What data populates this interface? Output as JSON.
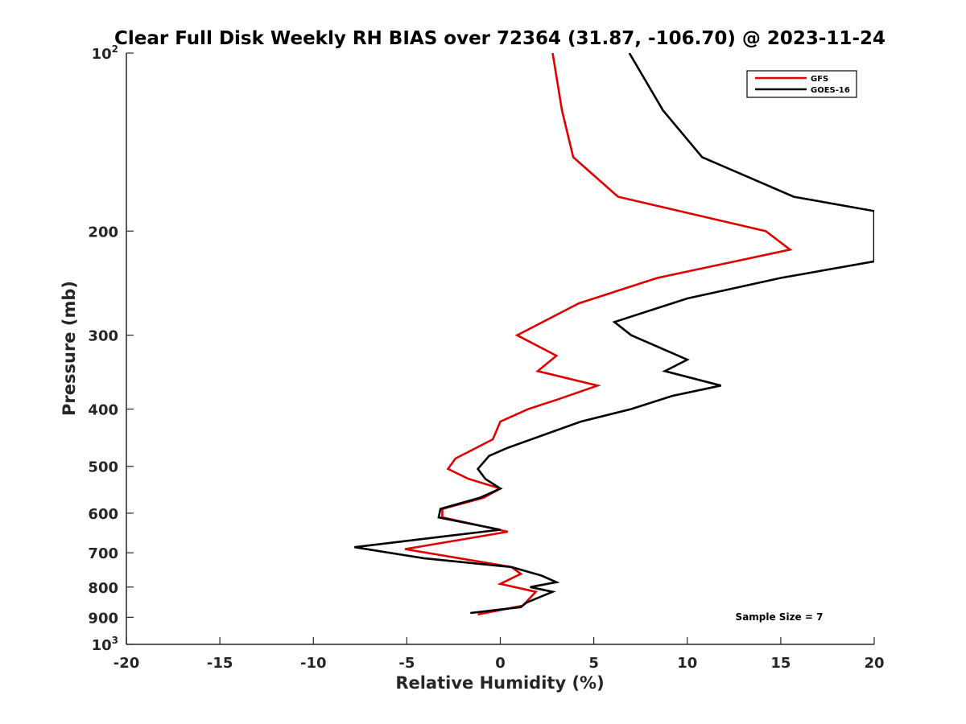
{
  "chart_data": {
    "type": "line",
    "title": "Clear Full Disk Weekly RH BIAS over 72364 (31.87, -106.70) @ 2023-11-24",
    "xlabel": "Relative Humidity (%)",
    "ylabel": "Pressure (mb)",
    "xlim": [
      -20,
      20
    ],
    "ylim": [
      100,
      1000
    ],
    "y_scale": "log",
    "y_reversed": true,
    "x_ticks": [
      "-20",
      "-15",
      "-10",
      "-5",
      "0",
      "5",
      "10",
      "15",
      "20"
    ],
    "y_ticks": [
      {
        "value": 100,
        "base": "10",
        "exp": "2"
      },
      {
        "value": 200,
        "base": "200",
        "exp": ""
      },
      {
        "value": 300,
        "base": "300",
        "exp": ""
      },
      {
        "value": 400,
        "base": "400",
        "exp": ""
      },
      {
        "value": 500,
        "base": "500",
        "exp": ""
      },
      {
        "value": 600,
        "base": "600",
        "exp": ""
      },
      {
        "value": 700,
        "base": "700",
        "exp": ""
      },
      {
        "value": 800,
        "base": "800",
        "exp": ""
      },
      {
        "value": 900,
        "base": "900",
        "exp": ""
      },
      {
        "value": 1000,
        "base": "10",
        "exp": "3"
      }
    ],
    "grid": false,
    "legend_position": "top-right",
    "annotation": "Sample Size = 7",
    "series": [
      {
        "name": "GFS",
        "color": "#e00000",
        "points": [
          [
            2.8,
            100
          ],
          [
            3.3,
            125
          ],
          [
            3.9,
            150
          ],
          [
            6.3,
            175
          ],
          [
            14.2,
            200
          ],
          [
            15.5,
            215
          ],
          [
            8.4,
            240
          ],
          [
            4.2,
            265
          ],
          [
            0.9,
            300
          ],
          [
            3.0,
            325
          ],
          [
            2.0,
            345
          ],
          [
            5.2,
            365
          ],
          [
            3.1,
            385
          ],
          [
            1.5,
            400
          ],
          [
            0.0,
            420
          ],
          [
            -0.4,
            450
          ],
          [
            -2.4,
            485
          ],
          [
            -2.8,
            505
          ],
          [
            -1.7,
            525
          ],
          [
            0.0,
            545
          ],
          [
            -0.9,
            565
          ],
          [
            -3.1,
            590
          ],
          [
            -3.1,
            610
          ],
          [
            0.4,
            645
          ],
          [
            -5.1,
            690
          ],
          [
            0.6,
            740
          ],
          [
            1.1,
            760
          ],
          [
            0.0,
            790
          ],
          [
            1.9,
            815
          ],
          [
            1.2,
            860
          ],
          [
            -1.2,
            890
          ]
        ]
      },
      {
        "name": "GOES-16",
        "color": "#000000",
        "points": [
          [
            6.9,
            100
          ],
          [
            8.7,
            125
          ],
          [
            10.8,
            150
          ],
          [
            15.7,
            175
          ],
          [
            20.0,
            185
          ],
          [
            20.0,
            225
          ],
          [
            15.0,
            240
          ],
          [
            10.0,
            260
          ],
          [
            6.1,
            285
          ],
          [
            7.0,
            300
          ],
          [
            10.0,
            330
          ],
          [
            8.8,
            345
          ],
          [
            11.8,
            365
          ],
          [
            9.2,
            380
          ],
          [
            7.0,
            400
          ],
          [
            4.3,
            420
          ],
          [
            0.4,
            465
          ],
          [
            -0.6,
            480
          ],
          [
            -1.2,
            505
          ],
          [
            -0.8,
            525
          ],
          [
            0.0,
            545
          ],
          [
            -1.1,
            565
          ],
          [
            -3.2,
            590
          ],
          [
            -3.3,
            610
          ],
          [
            0.0,
            640
          ],
          [
            -2.7,
            655
          ],
          [
            -7.8,
            685
          ],
          [
            -4.1,
            715
          ],
          [
            0.6,
            740
          ],
          [
            2.2,
            765
          ],
          [
            3.0,
            785
          ],
          [
            1.6,
            800
          ],
          [
            2.8,
            815
          ],
          [
            1.4,
            850
          ],
          [
            1.1,
            865
          ],
          [
            -1.6,
            885
          ]
        ]
      }
    ]
  }
}
